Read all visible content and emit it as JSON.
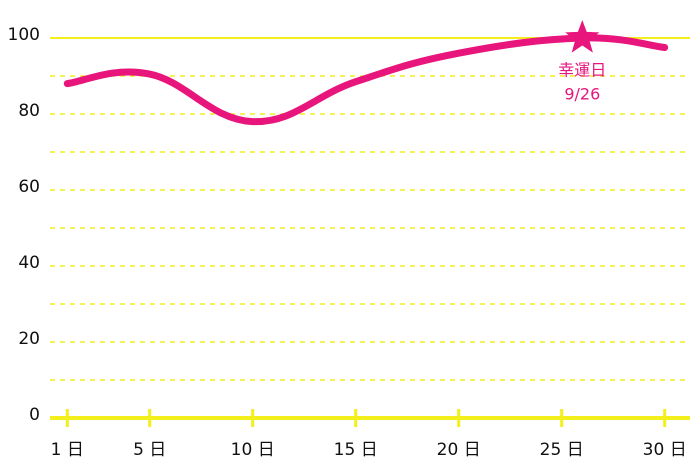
{
  "chart_data": {
    "type": "line",
    "x": [
      1,
      5,
      10,
      15,
      20,
      26,
      30
    ],
    "series": [
      {
        "color": "#e8157c",
        "values": [
          88,
          90.5,
          78,
          88.5,
          96,
          100,
          97.5
        ]
      }
    ],
    "xlim": [
      0.5,
      30.5
    ],
    "xticks": [
      {
        "value": 1,
        "label": "1 日"
      },
      {
        "value": 5,
        "label": "5 日"
      },
      {
        "value": 10,
        "label": "10 日"
      },
      {
        "value": 15,
        "label": "15 日"
      },
      {
        "value": 20,
        "label": "20 日"
      },
      {
        "value": 25,
        "label": "25 日"
      },
      {
        "value": 30,
        "label": "30 日"
      }
    ],
    "ylim": [
      0,
      100
    ],
    "yticks": [
      0,
      20,
      40,
      60,
      80,
      100
    ],
    "minor_yticks": [
      10,
      30,
      50,
      70,
      90
    ],
    "grid": true,
    "grid_color": "#f2ef1a",
    "annotation": {
      "x": 26,
      "y": 100,
      "lines": [
        "幸運日",
        "9/26"
      ]
    }
  }
}
